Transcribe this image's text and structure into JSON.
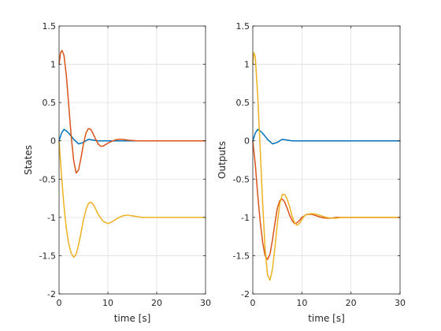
{
  "figure": {
    "background": "#ffffff"
  },
  "colors": {
    "series_1": "#0072BD",
    "series_2": "#D95319",
    "series_3": "#EDB120",
    "grid": "#DFDFDF",
    "axes": "#262626"
  },
  "chart_data": [
    {
      "type": "line",
      "title": "",
      "xlabel": "time [s]",
      "ylabel": "States",
      "xlim": [
        0,
        30
      ],
      "ylim": [
        -2,
        1.5
      ],
      "xticks": [
        0,
        10,
        20,
        30
      ],
      "yticks": [
        -2,
        -1.5,
        -1,
        -0.5,
        0,
        0.5,
        1,
        1.5
      ],
      "xtick_labels": [
        "0",
        "10",
        "20",
        "30"
      ],
      "ytick_labels": [
        "-2",
        "-1.5",
        "-1",
        "-0.5",
        "0",
        "0.5",
        "1",
        "1.5"
      ],
      "grid": true,
      "box": true,
      "series": [
        {
          "x": [
            0,
            0.5,
            1,
            1.5,
            2,
            3,
            4,
            5,
            6,
            7,
            8,
            9,
            10,
            11,
            12,
            13,
            14,
            15,
            16,
            18,
            20,
            22,
            25,
            30
          ],
          "values": [
            0,
            0.1,
            0.15,
            0.13,
            0.1,
            0.02,
            -0.04,
            -0.02,
            0.02,
            0.01,
            0,
            0,
            0,
            0,
            0,
            0,
            0,
            0,
            0,
            0,
            0,
            0,
            0,
            0
          ]
        },
        {
          "x": [
            0,
            0.3,
            0.6,
            1,
            1.5,
            2,
            2.5,
            3,
            3.5,
            4,
            4.5,
            5,
            5.5,
            6,
            6.5,
            7,
            7.5,
            8,
            8.5,
            9,
            9.5,
            10,
            11,
            12,
            13,
            14,
            15,
            16,
            17,
            18,
            20,
            22,
            24,
            26,
            28,
            30
          ],
          "values": [
            1.0,
            1.15,
            1.18,
            1.12,
            0.85,
            0.45,
            0.05,
            -0.26,
            -0.42,
            -0.38,
            -0.22,
            -0.04,
            0.1,
            0.16,
            0.15,
            0.09,
            0.02,
            -0.04,
            -0.07,
            -0.07,
            -0.05,
            -0.03,
            0,
            0.02,
            0.02,
            0.01,
            0.005,
            0,
            0,
            0,
            0,
            0,
            0,
            0,
            0,
            0
          ]
        },
        {
          "x": [
            0,
            0.5,
            1,
            1.5,
            2,
            2.5,
            3,
            3.5,
            4,
            4.5,
            5,
            5.5,
            6,
            6.5,
            7,
            7.5,
            8,
            9,
            10,
            10.5,
            11,
            12,
            13,
            14,
            15,
            16,
            17,
            18,
            19,
            20,
            22,
            24,
            26,
            28,
            30
          ],
          "values": [
            0,
            -0.45,
            -0.85,
            -1.15,
            -1.35,
            -1.47,
            -1.52,
            -1.48,
            -1.36,
            -1.2,
            -1.03,
            -0.9,
            -0.82,
            -0.8,
            -0.83,
            -0.89,
            -0.96,
            -1.05,
            -1.08,
            -1.07,
            -1.05,
            -1.01,
            -0.98,
            -0.97,
            -0.98,
            -0.99,
            -1.0,
            -1.0,
            -1.0,
            -1.0,
            -1.0,
            -1.0,
            -1.0,
            -1.0,
            -1.0
          ]
        }
      ]
    },
    {
      "type": "line",
      "title": "",
      "xlabel": "time [s]",
      "ylabel": "Outputs",
      "xlim": [
        0,
        30
      ],
      "ylim": [
        -2,
        1.5
      ],
      "xticks": [
        0,
        10,
        20,
        30
      ],
      "yticks": [
        -2,
        -1.5,
        -1,
        -0.5,
        0,
        0.5,
        1,
        1.5
      ],
      "xtick_labels": [
        "0",
        "10",
        "20",
        "30"
      ],
      "ytick_labels": [
        "-2",
        "-1.5",
        "-1",
        "-0.5",
        "0",
        "0.5",
        "1",
        "1.5"
      ],
      "grid": true,
      "box": true,
      "series": [
        {
          "x": [
            0,
            0.5,
            1,
            1.5,
            2,
            3,
            4,
            5,
            6,
            7,
            8,
            9,
            10,
            11,
            12,
            13,
            14,
            15,
            16,
            18,
            20,
            22,
            25,
            30
          ],
          "values": [
            0,
            0.1,
            0.15,
            0.13,
            0.1,
            0.02,
            -0.04,
            -0.02,
            0.02,
            0.01,
            0,
            0,
            0,
            0,
            0,
            0,
            0,
            0,
            0,
            0,
            0,
            0,
            0,
            0
          ]
        },
        {
          "x": [
            0,
            0.5,
            1,
            1.5,
            2,
            2.5,
            3,
            3.5,
            4,
            4.5,
            5,
            5.5,
            6,
            6.5,
            7,
            7.5,
            8,
            8.5,
            9,
            9.5,
            10,
            11,
            12,
            13,
            14,
            15,
            16,
            17,
            18,
            19,
            20,
            22,
            24,
            26,
            28,
            30
          ],
          "values": [
            0,
            -0.3,
            -0.7,
            -1.05,
            -1.32,
            -1.5,
            -1.55,
            -1.48,
            -1.3,
            -1.08,
            -0.88,
            -0.78,
            -0.76,
            -0.8,
            -0.88,
            -0.97,
            -1.04,
            -1.08,
            -1.07,
            -1.04,
            -1.0,
            -0.96,
            -0.96,
            -0.98,
            -1.0,
            -1.01,
            -1.01,
            -1.0,
            -1.0,
            -1.0,
            -1.0,
            -1.0,
            -1.0,
            -1.0,
            -1.0,
            -1.0
          ]
        },
        {
          "x": [
            0,
            0.2,
            0.5,
            1,
            1.5,
            2,
            2.5,
            3,
            3.5,
            4,
            4.5,
            5,
            5.5,
            6,
            6.5,
            7,
            7.5,
            8,
            8.5,
            9,
            9.5,
            10,
            10.5,
            11,
            12,
            13,
            14,
            15,
            16,
            17,
            18,
            19,
            20,
            22,
            24,
            26,
            28,
            30
          ],
          "values": [
            1.0,
            1.15,
            1.1,
            0.6,
            -0.1,
            -0.8,
            -1.4,
            -1.75,
            -1.82,
            -1.68,
            -1.4,
            -1.08,
            -0.82,
            -0.7,
            -0.7,
            -0.76,
            -0.86,
            -0.98,
            -1.07,
            -1.1,
            -1.08,
            -1.03,
            -0.98,
            -0.96,
            -0.95,
            -0.96,
            -0.98,
            -1.0,
            -1.01,
            -1.01,
            -1.0,
            -1.0,
            -1.0,
            -1.0,
            -1.0,
            -1.0,
            -1.0,
            -1.0
          ]
        }
      ]
    }
  ]
}
